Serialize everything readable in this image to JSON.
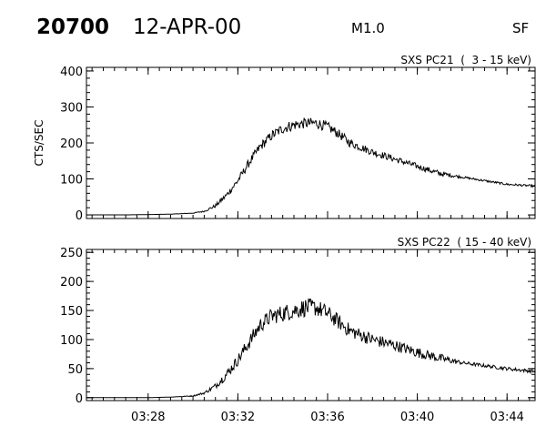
{
  "header": {
    "event_id": "20700",
    "date": "12-APR-00",
    "goes_class": "M1.0",
    "code": "SF"
  },
  "chart_data": [
    {
      "type": "line",
      "title": "SXS PC21  (  3 - 15 keV)",
      "ylabel": "CTS/SEC",
      "xlabel": "",
      "ylim": [
        -10,
        410
      ],
      "yticks": [
        0,
        100,
        200,
        300,
        400
      ],
      "xlim": [
        "03:25:15",
        "03:45:15"
      ],
      "xticks": [
        "03:28",
        "03:32",
        "03:36",
        "03:40",
        "03:44"
      ],
      "show_xtick_labels": false,
      "grid": false,
      "series": [
        {
          "x": [
            "03:25:15",
            "03:26:00",
            "03:27:00",
            "03:28:00",
            "03:29:00",
            "03:30:00",
            "03:30:30",
            "03:31:00",
            "03:31:30",
            "03:32:00",
            "03:32:30",
            "03:33:00",
            "03:33:30",
            "03:34:00",
            "03:34:30",
            "03:35:00",
            "03:35:30",
            "03:36:00",
            "03:36:30",
            "03:37:00",
            "03:38:00",
            "03:39:00",
            "03:40:00",
            "03:41:00",
            "03:42:00",
            "03:43:00",
            "03:44:00",
            "03:45:15"
          ],
          "y": [
            0,
            0,
            0,
            1,
            2,
            5,
            10,
            25,
            55,
            95,
            145,
            190,
            220,
            240,
            250,
            255,
            255,
            245,
            225,
            200,
            175,
            155,
            135,
            115,
            105,
            95,
            85,
            80
          ],
          "noise": [
            0,
            0,
            0,
            0,
            0,
            1,
            2,
            5,
            8,
            10,
            12,
            13,
            14,
            15,
            15,
            15,
            15,
            14,
            13,
            12,
            10,
            9,
            8,
            8,
            3,
            3,
            3,
            3
          ]
        }
      ]
    },
    {
      "type": "line",
      "title": "SXS PC22  ( 15 - 40 keV)",
      "ylabel": "",
      "xlabel": "",
      "ylim": [
        -5,
        255
      ],
      "yticks": [
        0,
        50,
        100,
        150,
        200,
        250
      ],
      "xlim": [
        "03:25:15",
        "03:45:15"
      ],
      "xticks": [
        "03:28",
        "03:32",
        "03:36",
        "03:40",
        "03:44"
      ],
      "show_xtick_labels": true,
      "grid": false,
      "series": [
        {
          "x": [
            "03:25:15",
            "03:26:00",
            "03:27:00",
            "03:28:00",
            "03:29:00",
            "03:30:00",
            "03:30:30",
            "03:31:00",
            "03:31:30",
            "03:32:00",
            "03:32:30",
            "03:33:00",
            "03:33:30",
            "03:34:00",
            "03:34:30",
            "03:35:00",
            "03:35:30",
            "03:36:00",
            "03:36:30",
            "03:37:00",
            "03:38:00",
            "03:39:00",
            "03:40:00",
            "03:41:00",
            "03:42:00",
            "03:43:00",
            "03:44:00",
            "03:45:15"
          ],
          "y": [
            0,
            0,
            0,
            0,
            1,
            3,
            8,
            20,
            40,
            65,
            95,
            125,
            140,
            145,
            150,
            155,
            155,
            145,
            130,
            115,
            100,
            90,
            78,
            68,
            60,
            55,
            50,
            45
          ],
          "noise": [
            0,
            0,
            0,
            0,
            0,
            1,
            2,
            5,
            8,
            10,
            12,
            13,
            14,
            15,
            15,
            16,
            15,
            14,
            13,
            12,
            11,
            10,
            9,
            8,
            3,
            3,
            3,
            3
          ]
        }
      ]
    }
  ]
}
